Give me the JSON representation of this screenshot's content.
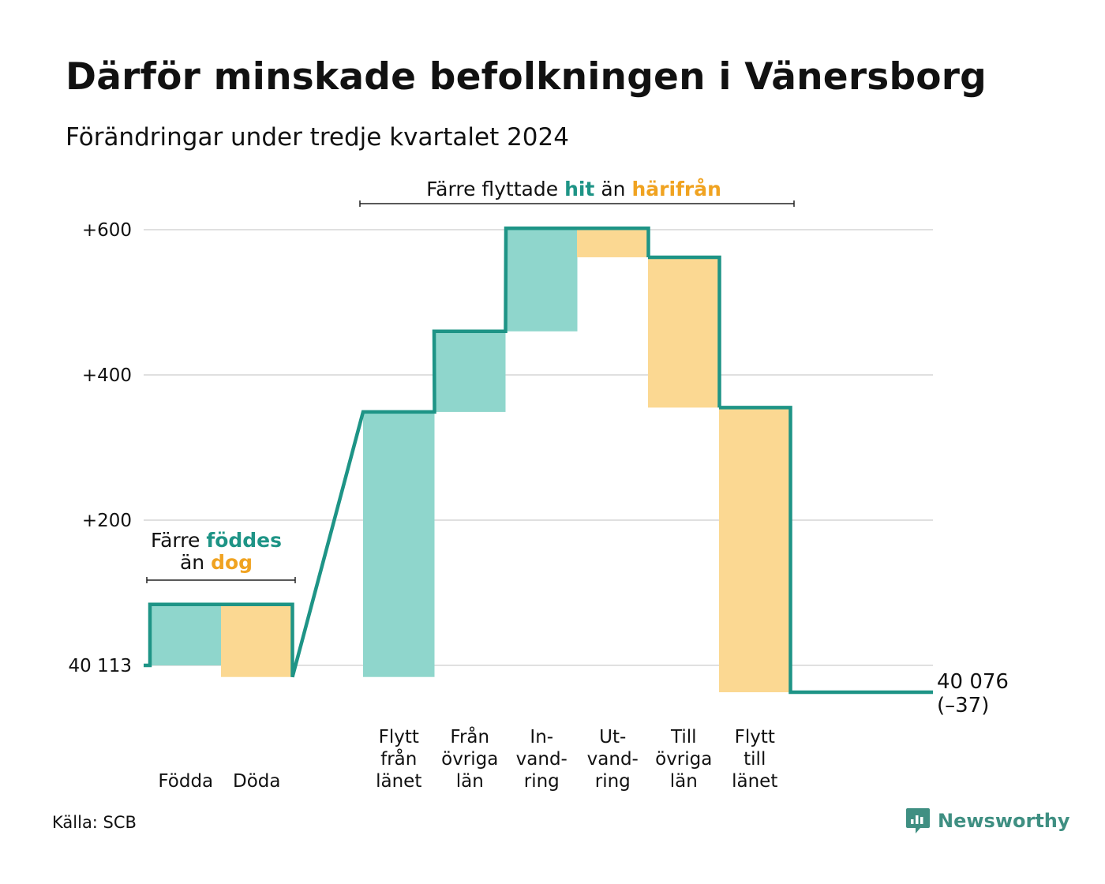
{
  "title": "Därför minskade befolkningen i Vänersborg",
  "subtitle": "Förändringar under tredje kvartalet 2024",
  "source": "Källa: SCB",
  "brand": "Newsworthy",
  "colors": {
    "increase_bar": "#8fd6cc",
    "decrease_bar": "#fbd892",
    "step_line": "#1e9486",
    "highlight_in": "#1e9486",
    "highlight_out": "#f0a321",
    "grid": "#e0e0e0",
    "brand": "#3f8f82"
  },
  "annotations": {
    "births": {
      "prefix": "Färre",
      "highlight1": "föddes",
      "middle": "än",
      "highlight2": "dog"
    },
    "moves": {
      "prefix": "Färre flyttade",
      "highlight1": "hit",
      "middle": "än",
      "highlight2": "härifrån"
    }
  },
  "chart_data": {
    "type": "waterfall",
    "title": "Därför minskade befolkningen i Vänersborg",
    "subtitle": "Förändringar under tredje kvartalet 2024",
    "start_value": 40113,
    "start_label": "40 113",
    "end_value": 40076,
    "end_label": "40 076",
    "net_change_label": "(–37)",
    "y_ticks": [
      {
        "value": 600,
        "label": "+600"
      },
      {
        "value": 400,
        "label": "+400"
      },
      {
        "value": 200,
        "label": "+200"
      },
      {
        "value": 0,
        "label": "40 113"
      }
    ],
    "ylim": [
      -40,
      605
    ],
    "grid": true,
    "steps": [
      {
        "label": [
          "Födda"
        ],
        "change": 84,
        "direction": "in"
      },
      {
        "label": [
          "Döda"
        ],
        "change": -100,
        "direction": "out"
      },
      {
        "label": [
          "Flytt",
          "från",
          "länet"
        ],
        "change": 365,
        "direction": "in"
      },
      {
        "label": [
          "Från",
          "övriga",
          "län"
        ],
        "change": 111,
        "direction": "in"
      },
      {
        "label": [
          "In-",
          "vand-",
          "ring"
        ],
        "change": 142,
        "direction": "in"
      },
      {
        "label": [
          "Ut-",
          "vand-",
          "ring"
        ],
        "change": -40,
        "direction": "out"
      },
      {
        "label": [
          "Till",
          "övriga",
          "län"
        ],
        "change": -207,
        "direction": "out"
      },
      {
        "label": [
          "Flytt",
          "till",
          "länet"
        ],
        "change": -392,
        "direction": "out"
      }
    ]
  }
}
